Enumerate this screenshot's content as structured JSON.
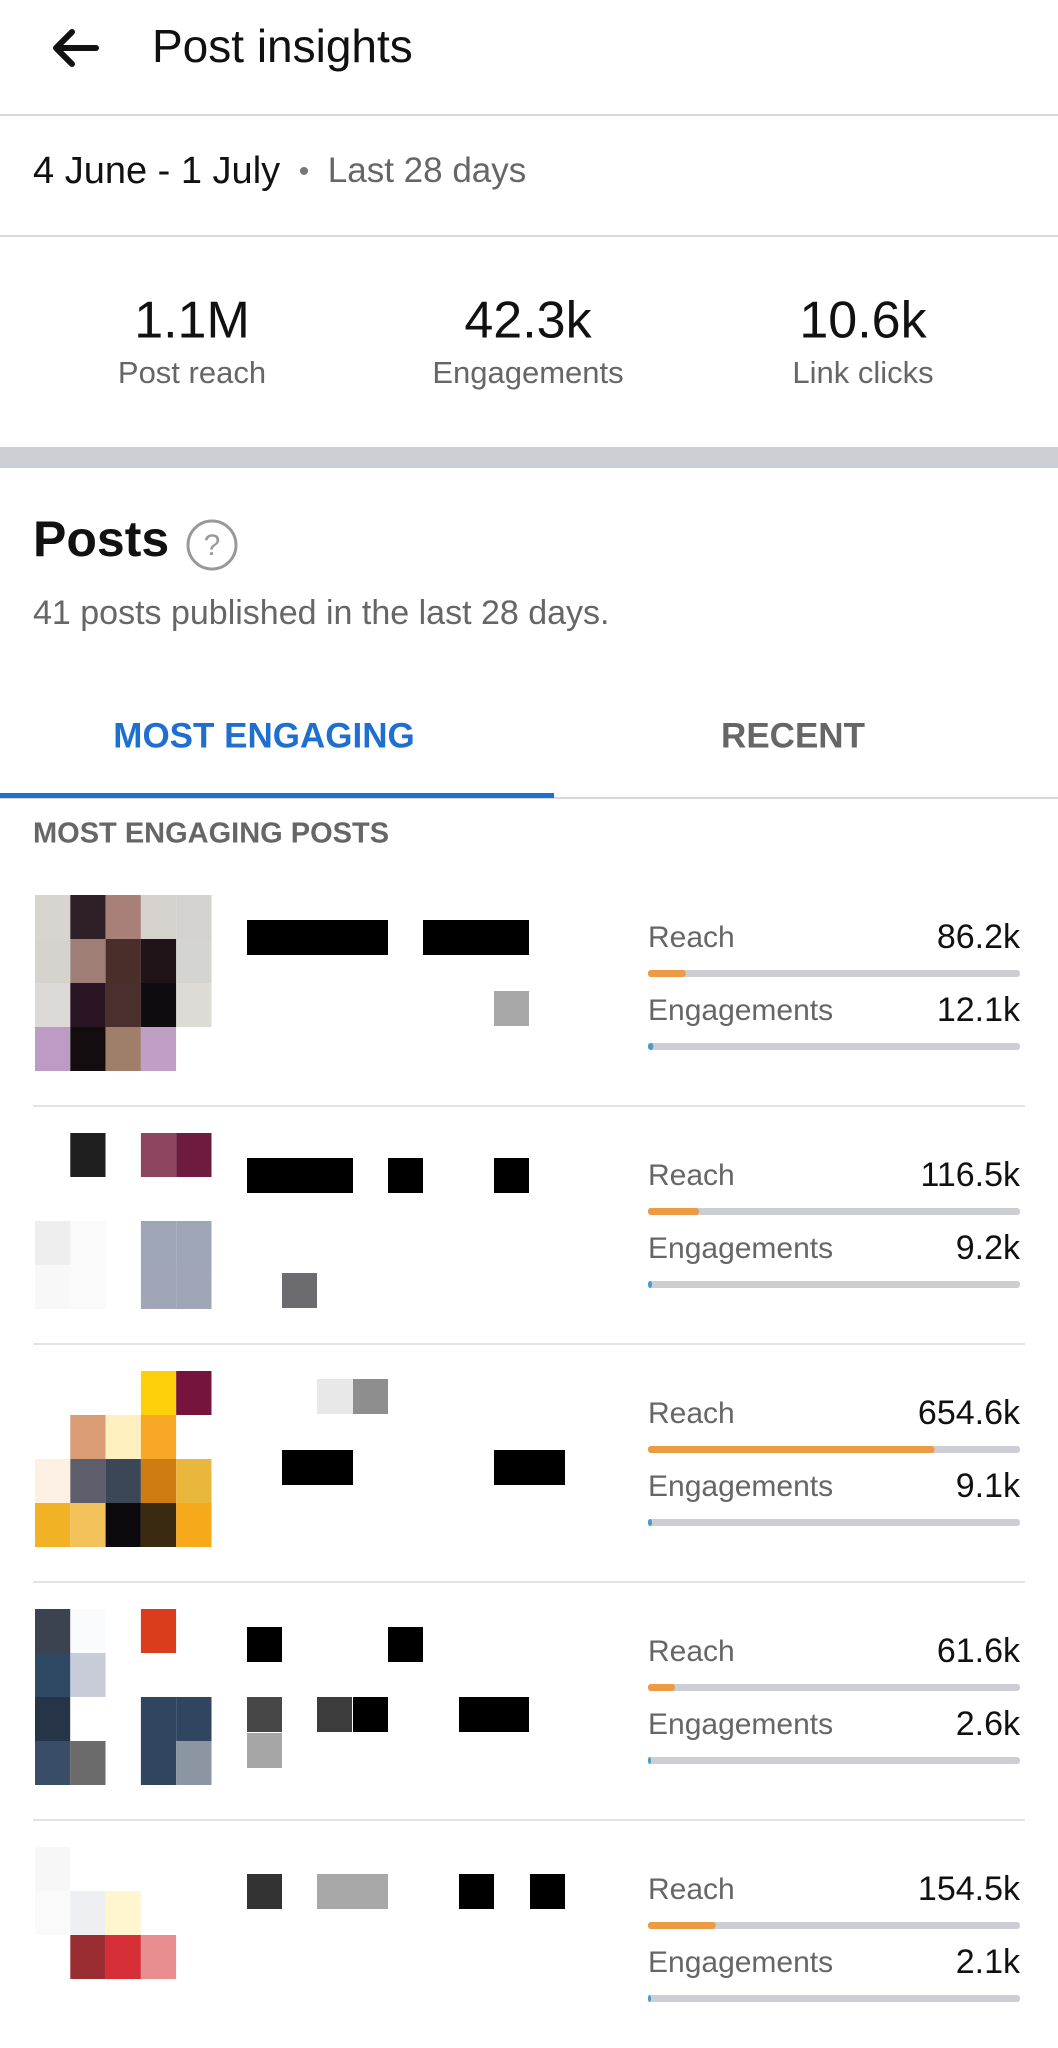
{
  "header": {
    "title": "Post insights"
  },
  "date_range": "4 June - 1 July",
  "period": "Last 28 days",
  "summary": [
    {
      "value": "1.1M",
      "label": "Post reach"
    },
    {
      "value": "42.3k",
      "label": "Engagements"
    },
    {
      "value": "10.6k",
      "label": "Link clicks"
    }
  ],
  "posts_section": {
    "title": "Posts",
    "subtitle": "41 posts published in the last 28 days."
  },
  "tabs": [
    "MOST ENGAGING",
    "RECENT"
  ],
  "list_title": "MOST ENGAGING POSTS",
  "metric_labels": [
    "Reach",
    "Engagements"
  ],
  "posts": [
    {
      "reach": 86200,
      "reach_label": "86.2k",
      "engagements": 12100,
      "engagements_label": "12.1k"
    },
    {
      "reach": 116500,
      "reach_label": "116.5k",
      "engagements": 9200,
      "engagements_label": "9.2k"
    },
    {
      "reach": 654600,
      "reach_label": "654.6k",
      "engagements": 9100,
      "engagements_label": "9.1k"
    },
    {
      "reach": 61600,
      "reach_label": "61.6k",
      "engagements": 2600,
      "engagements_label": "2.6k"
    },
    {
      "reach": 154500,
      "reach_label": "154.5k",
      "engagements": 2100,
      "engagements_label": "2.1k"
    }
  ]
}
